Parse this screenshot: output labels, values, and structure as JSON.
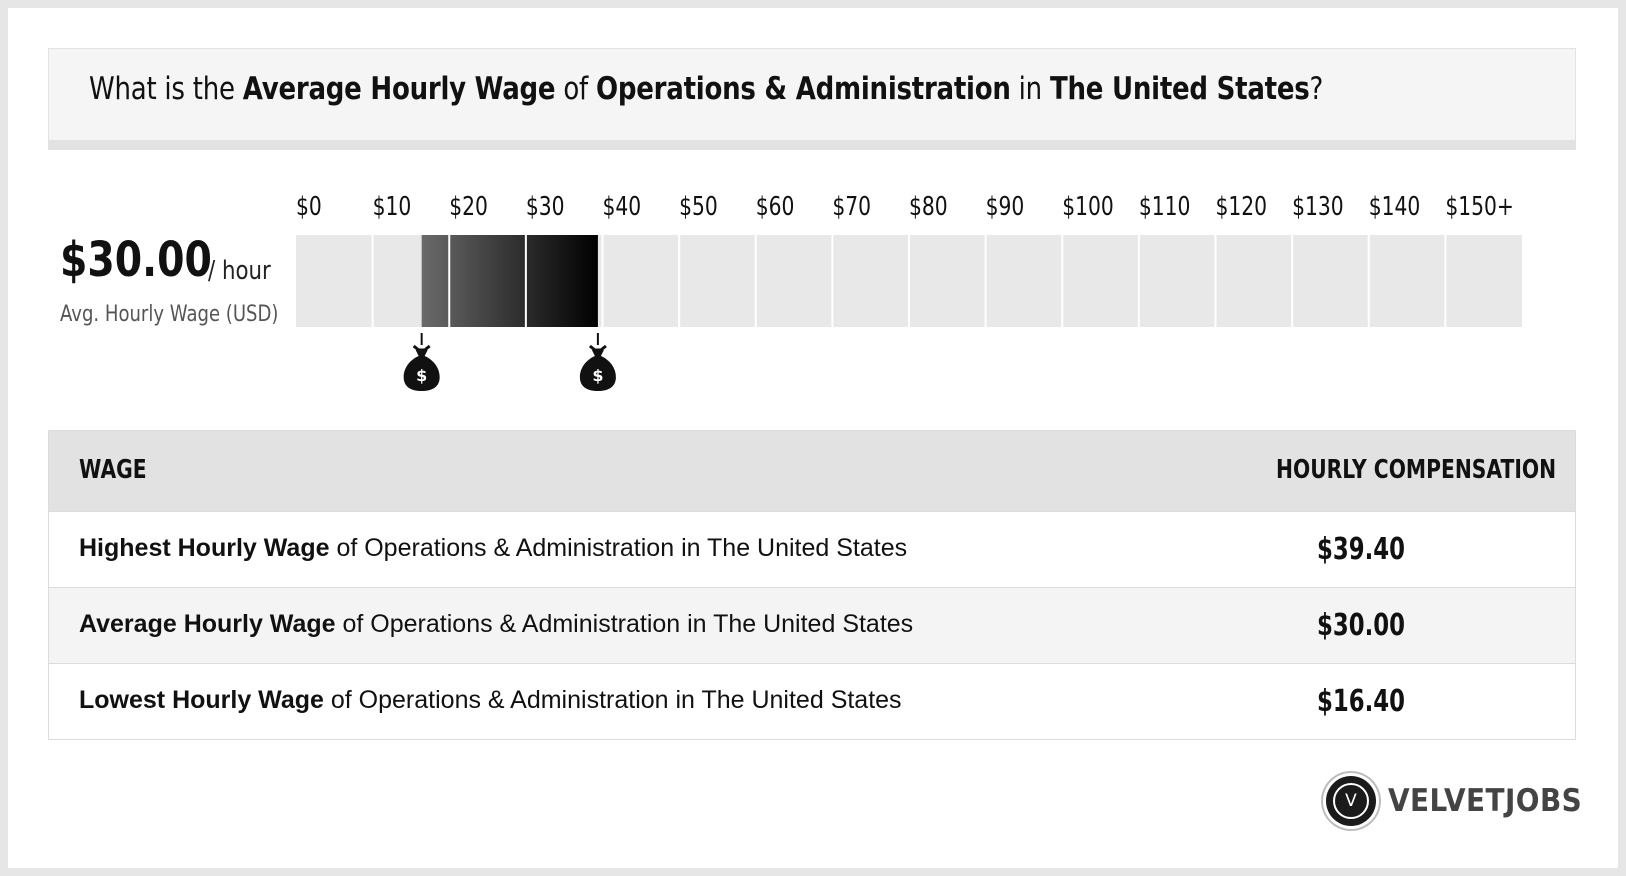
{
  "question": {
    "p1": "What is the ",
    "b1": "Average Hourly Wage",
    "p2": " of ",
    "b2": "Operations & Administration",
    "p3": " in ",
    "b3": "The United States",
    "p4": "?"
  },
  "average": {
    "value": "$30.00",
    "unit": "/ hour",
    "label": "Avg. Hourly Wage (USD)"
  },
  "chart_data": {
    "type": "bar",
    "orientation": "horizontal-range",
    "tick_labels": [
      "$0",
      "$10",
      "$20",
      "$30",
      "$40",
      "$50",
      "$60",
      "$70",
      "$80",
      "$90",
      "$100",
      "$110",
      "$120",
      "$130",
      "$140",
      "$150+"
    ],
    "xlim": [
      0,
      150
    ],
    "range": {
      "low": 16.4,
      "average": 30.0,
      "high": 39.4
    },
    "markers": [
      {
        "value": 16.4,
        "icon": "money-bag-icon",
        "symbol": "$"
      },
      {
        "value": 39.4,
        "icon": "money-bag-icon",
        "symbol": "$"
      }
    ],
    "colors": {
      "track": "#e8e8e8",
      "range_start": "#6a6a6a",
      "range_end": "#000000"
    }
  },
  "table": {
    "headers": {
      "wage": "WAGE",
      "compensation": "HOURLY COMPENSATION"
    },
    "rows": [
      {
        "bold": "Highest Hourly Wage",
        "rest": " of Operations & Administration in The United States",
        "value": "$39.40"
      },
      {
        "bold": "Average Hourly Wage",
        "rest": " of Operations & Administration in The United States",
        "value": "$30.00"
      },
      {
        "bold": "Lowest Hourly Wage",
        "rest": " of Operations & Administration in The United States",
        "value": "$16.40"
      }
    ]
  },
  "logo": {
    "badge": "V",
    "text": "VELVETJOBS"
  }
}
